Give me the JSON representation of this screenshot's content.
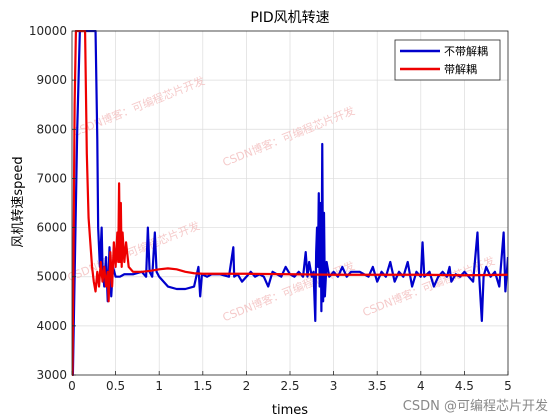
{
  "chart_data": {
    "type": "line",
    "title": "PID风机转速",
    "xlabel": "times",
    "ylabel": "风机转速speed",
    "xlim": [
      0,
      5
    ],
    "ylim": [
      3000,
      10000
    ],
    "x_ticks": [
      0,
      0.5,
      1,
      1.5,
      2,
      2.5,
      3,
      3.5,
      4,
      4.5,
      5
    ],
    "x_tick_labels": [
      "0",
      "0.5",
      "1",
      "1.5",
      "2",
      "2.5",
      "3",
      "3.5",
      "4",
      "4.5",
      "5"
    ],
    "y_ticks": [
      3000,
      4000,
      5000,
      6000,
      7000,
      8000,
      9000,
      10000
    ],
    "y_tick_labels": [
      "3000",
      "4000",
      "5000",
      "6000",
      "7000",
      "8000",
      "9000",
      "10000"
    ],
    "grid": true,
    "legend_position": "top-right",
    "series": [
      {
        "name": "不带解耦",
        "color": "#0000cc",
        "points": [
          [
            0.0,
            3000
          ],
          [
            0.01,
            3000
          ],
          [
            0.03,
            5000
          ],
          [
            0.06,
            8000
          ],
          [
            0.09,
            10000
          ],
          [
            0.12,
            10000
          ],
          [
            0.2,
            10000
          ],
          [
            0.27,
            10000
          ],
          [
            0.29,
            7800
          ],
          [
            0.3,
            6000
          ],
          [
            0.32,
            5200
          ],
          [
            0.34,
            6000
          ],
          [
            0.35,
            5200
          ],
          [
            0.37,
            4800
          ],
          [
            0.39,
            5400
          ],
          [
            0.41,
            4500
          ],
          [
            0.43,
            5600
          ],
          [
            0.45,
            4600
          ],
          [
            0.47,
            5200
          ],
          [
            0.5,
            5000
          ],
          [
            0.55,
            5000
          ],
          [
            0.6,
            5050
          ],
          [
            0.7,
            5050
          ],
          [
            0.8,
            5100
          ],
          [
            0.85,
            5000
          ],
          [
            0.87,
            6000
          ],
          [
            0.89,
            5100
          ],
          [
            0.92,
            5000
          ],
          [
            0.95,
            5900
          ],
          [
            0.97,
            5100
          ],
          [
            1.0,
            5000
          ],
          [
            1.05,
            4900
          ],
          [
            1.1,
            4800
          ],
          [
            1.2,
            4750
          ],
          [
            1.3,
            4750
          ],
          [
            1.4,
            4800
          ],
          [
            1.45,
            5200
          ],
          [
            1.47,
            4600
          ],
          [
            1.49,
            5050
          ],
          [
            1.55,
            5000
          ],
          [
            1.6,
            5050
          ],
          [
            1.7,
            5050
          ],
          [
            1.8,
            5000
          ],
          [
            1.85,
            5600
          ],
          [
            1.86,
            5000
          ],
          [
            1.9,
            5050
          ],
          [
            1.95,
            4900
          ],
          [
            2.0,
            5000
          ],
          [
            2.05,
            5100
          ],
          [
            2.1,
            5000
          ],
          [
            2.15,
            5050
          ],
          [
            2.2,
            5000
          ],
          [
            2.25,
            4800
          ],
          [
            2.3,
            5100
          ],
          [
            2.4,
            5000
          ],
          [
            2.45,
            5200
          ],
          [
            2.5,
            5050
          ],
          [
            2.55,
            5000
          ],
          [
            2.6,
            5100
          ],
          [
            2.65,
            5000
          ],
          [
            2.68,
            5500
          ],
          [
            2.7,
            5000
          ],
          [
            2.72,
            5300
          ],
          [
            2.75,
            5000
          ],
          [
            2.77,
            5100
          ],
          [
            2.79,
            4100
          ],
          [
            2.8,
            5500
          ],
          [
            2.81,
            6000
          ],
          [
            2.82,
            5200
          ],
          [
            2.83,
            6700
          ],
          [
            2.84,
            4800
          ],
          [
            2.85,
            6500
          ],
          [
            2.86,
            4300
          ],
          [
            2.87,
            7700
          ],
          [
            2.88,
            4500
          ],
          [
            2.89,
            6300
          ],
          [
            2.9,
            4600
          ],
          [
            2.92,
            5300
          ],
          [
            2.95,
            5000
          ],
          [
            3.0,
            5100
          ],
          [
            3.05,
            5000
          ],
          [
            3.1,
            5200
          ],
          [
            3.15,
            5000
          ],
          [
            3.2,
            5100
          ],
          [
            3.3,
            5100
          ],
          [
            3.4,
            5000
          ],
          [
            3.45,
            5200
          ],
          [
            3.5,
            4900
          ],
          [
            3.55,
            5100
          ],
          [
            3.6,
            5000
          ],
          [
            3.65,
            5300
          ],
          [
            3.7,
            4900
          ],
          [
            3.75,
            5100
          ],
          [
            3.8,
            5000
          ],
          [
            3.85,
            5300
          ],
          [
            3.9,
            4800
          ],
          [
            3.95,
            5100
          ],
          [
            4.0,
            5000
          ],
          [
            4.02,
            5700
          ],
          [
            4.04,
            5000
          ],
          [
            4.1,
            5100
          ],
          [
            4.15,
            4800
          ],
          [
            4.2,
            5000
          ],
          [
            4.25,
            5100
          ],
          [
            4.3,
            5000
          ],
          [
            4.33,
            5200
          ],
          [
            4.35,
            4900
          ],
          [
            4.4,
            5050
          ],
          [
            4.45,
            5000
          ],
          [
            4.5,
            5100
          ],
          [
            4.6,
            4900
          ],
          [
            4.65,
            5900
          ],
          [
            4.67,
            5000
          ],
          [
            4.7,
            4100
          ],
          [
            4.72,
            5000
          ],
          [
            4.75,
            5200
          ],
          [
            4.8,
            5000
          ],
          [
            4.85,
            5100
          ],
          [
            4.9,
            4800
          ],
          [
            4.95,
            5900
          ],
          [
            4.97,
            4700
          ],
          [
            5.0,
            5400
          ]
        ]
      },
      {
        "name": "带解耦",
        "color": "#ee0000",
        "points": [
          [
            0.0,
            3000
          ],
          [
            0.005,
            3000
          ],
          [
            0.015,
            5000
          ],
          [
            0.03,
            8500
          ],
          [
            0.045,
            10000
          ],
          [
            0.08,
            10000
          ],
          [
            0.1,
            10000
          ],
          [
            0.12,
            10000
          ],
          [
            0.15,
            10000
          ],
          [
            0.17,
            7500
          ],
          [
            0.19,
            6200
          ],
          [
            0.21,
            5700
          ],
          [
            0.23,
            5200
          ],
          [
            0.25,
            4900
          ],
          [
            0.27,
            4700
          ],
          [
            0.29,
            5100
          ],
          [
            0.31,
            4800
          ],
          [
            0.33,
            5300
          ],
          [
            0.35,
            4900
          ],
          [
            0.37,
            5200
          ],
          [
            0.39,
            4800
          ],
          [
            0.41,
            5100
          ],
          [
            0.42,
            4500
          ],
          [
            0.44,
            5500
          ],
          [
            0.46,
            4800
          ],
          [
            0.48,
            5700
          ],
          [
            0.5,
            5200
          ],
          [
            0.52,
            5900
          ],
          [
            0.53,
            5300
          ],
          [
            0.54,
            6900
          ],
          [
            0.55,
            5300
          ],
          [
            0.56,
            6500
          ],
          [
            0.57,
            5200
          ],
          [
            0.58,
            5900
          ],
          [
            0.6,
            5300
          ],
          [
            0.62,
            5700
          ],
          [
            0.65,
            5200
          ],
          [
            0.7,
            5100
          ],
          [
            0.8,
            5100
          ],
          [
            0.9,
            5120
          ],
          [
            1.0,
            5150
          ],
          [
            1.1,
            5170
          ],
          [
            1.2,
            5150
          ],
          [
            1.3,
            5100
          ],
          [
            1.4,
            5070
          ],
          [
            1.5,
            5060
          ],
          [
            1.7,
            5060
          ],
          [
            2.0,
            5060
          ],
          [
            2.5,
            5050
          ],
          [
            3.0,
            5040
          ],
          [
            3.5,
            5040
          ],
          [
            4.0,
            5040
          ],
          [
            4.5,
            5030
          ],
          [
            5.0,
            5040
          ]
        ]
      }
    ]
  },
  "watermarks": [
    "CSDN博客：可编程芯片开发",
    "CSDN博客：可编程芯片开发",
    "CSDN博客：可编程芯片开发",
    "CSDN博客：可编程芯片开发",
    "CSDN博客：可编程芯片开发"
  ],
  "footer_watermark": "CSDN @可编程芯片开发"
}
